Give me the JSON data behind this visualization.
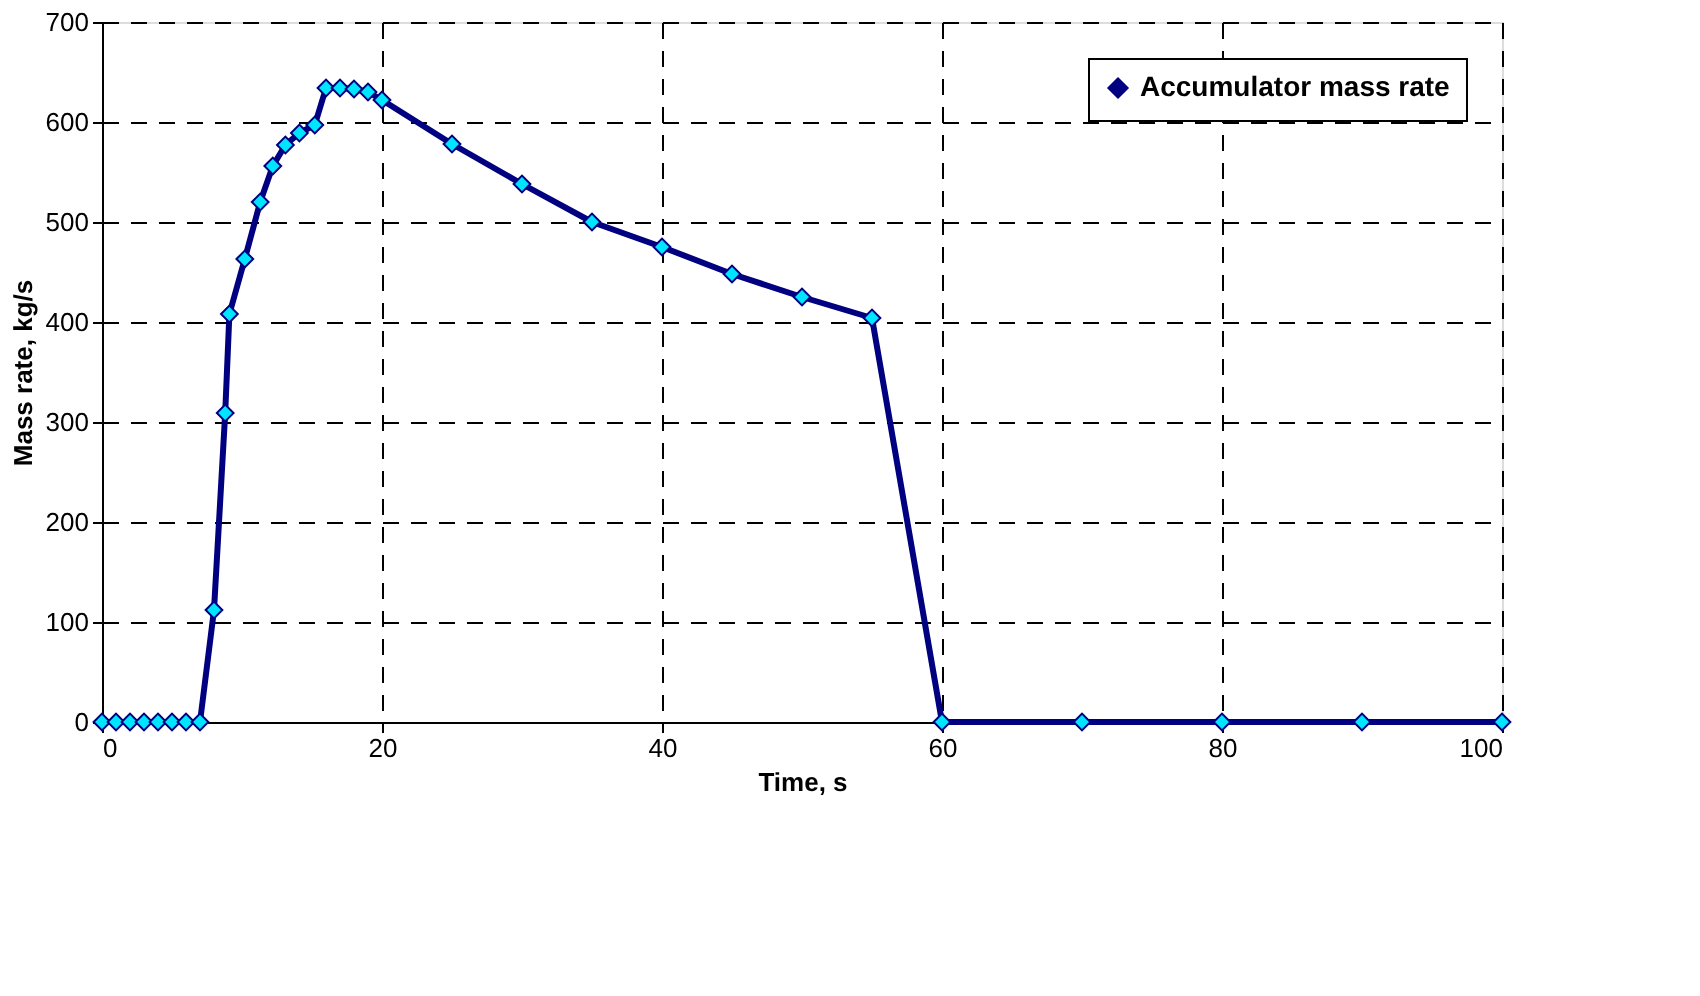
{
  "chart_data": {
    "type": "line",
    "xlabel": "Time, s",
    "ylabel": "Mass rate, kg/s",
    "xlim": [
      0,
      100
    ],
    "xticks": [
      0,
      20,
      40,
      60,
      80,
      100
    ],
    "ylim": [
      0,
      700
    ],
    "yticks": [
      0,
      100,
      200,
      300,
      400,
      500,
      600,
      700
    ],
    "grid": true,
    "legend": "top right",
    "marker": "diamond",
    "line_style": "solid",
    "series": [
      {
        "name": "Accumulator mass rate",
        "color": "#000080",
        "x": [
          0,
          1,
          2,
          3,
          4,
          5,
          6,
          7,
          8,
          8.8,
          9.1,
          10.2,
          11.3,
          12.2,
          13.1,
          14.1,
          15.2,
          16,
          17,
          18,
          19,
          20,
          25,
          30,
          35,
          40,
          45,
          50,
          55,
          60,
          70,
          80,
          90,
          100
        ],
        "values": [
          0,
          0,
          0,
          0,
          0,
          0,
          0,
          0,
          112,
          309,
          408,
          463,
          520,
          556,
          577,
          589,
          597,
          634,
          634,
          633,
          630,
          622,
          578,
          538,
          500,
          475,
          448,
          425,
          404,
          0,
          0,
          0,
          0,
          0
        ]
      }
    ]
  }
}
